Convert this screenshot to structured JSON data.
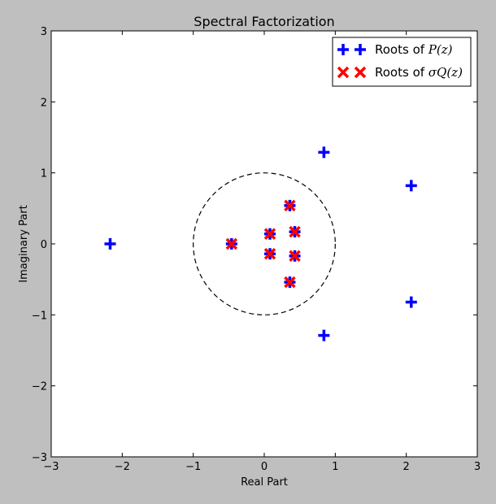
{
  "chart_data": {
    "type": "scatter",
    "title": "Spectral Factorization",
    "xlabel": "Real Part",
    "ylabel": "Imaginary Part",
    "xlim": [
      -3,
      3
    ],
    "ylim": [
      -3,
      3
    ],
    "xticks": [
      -3,
      -2,
      -1,
      0,
      1,
      2,
      3
    ],
    "yticks": [
      -3,
      -2,
      -1,
      0,
      1,
      2,
      3
    ],
    "xtick_labels": [
      "−3",
      "−2",
      "−1",
      "0",
      "1",
      "2",
      "3"
    ],
    "ytick_labels": [
      "−3",
      "−2",
      "−1",
      "0",
      "1",
      "2",
      "3"
    ],
    "grid": false,
    "legend_position": "top-right",
    "unit_circle": {
      "center": [
        0,
        0
      ],
      "radius": 1,
      "style": "dashed"
    },
    "series": [
      {
        "name": "Roots of P(z)",
        "legend_prefix": "Roots of ",
        "legend_math": "P(z)",
        "marker": "plus",
        "color": "#0000ff",
        "points": [
          [
            -2.17,
            0.0
          ],
          [
            0.84,
            1.29
          ],
          [
            0.84,
            -1.29
          ],
          [
            2.07,
            0.82
          ],
          [
            2.07,
            -0.82
          ],
          [
            -0.46,
            0.0
          ],
          [
            0.08,
            0.14
          ],
          [
            0.08,
            -0.14
          ],
          [
            0.36,
            0.54
          ],
          [
            0.36,
            -0.54
          ],
          [
            0.43,
            0.17
          ],
          [
            0.43,
            -0.17
          ]
        ]
      },
      {
        "name": "Roots of σQ(z)",
        "legend_prefix": "Roots of ",
        "legend_math": "σQ(z)",
        "marker": "x",
        "color": "#ff0000",
        "points": [
          [
            -0.46,
            0.0
          ],
          [
            0.08,
            0.14
          ],
          [
            0.08,
            -0.14
          ],
          [
            0.36,
            0.54
          ],
          [
            0.36,
            -0.54
          ],
          [
            0.43,
            0.17
          ],
          [
            0.43,
            -0.17
          ]
        ]
      }
    ]
  }
}
